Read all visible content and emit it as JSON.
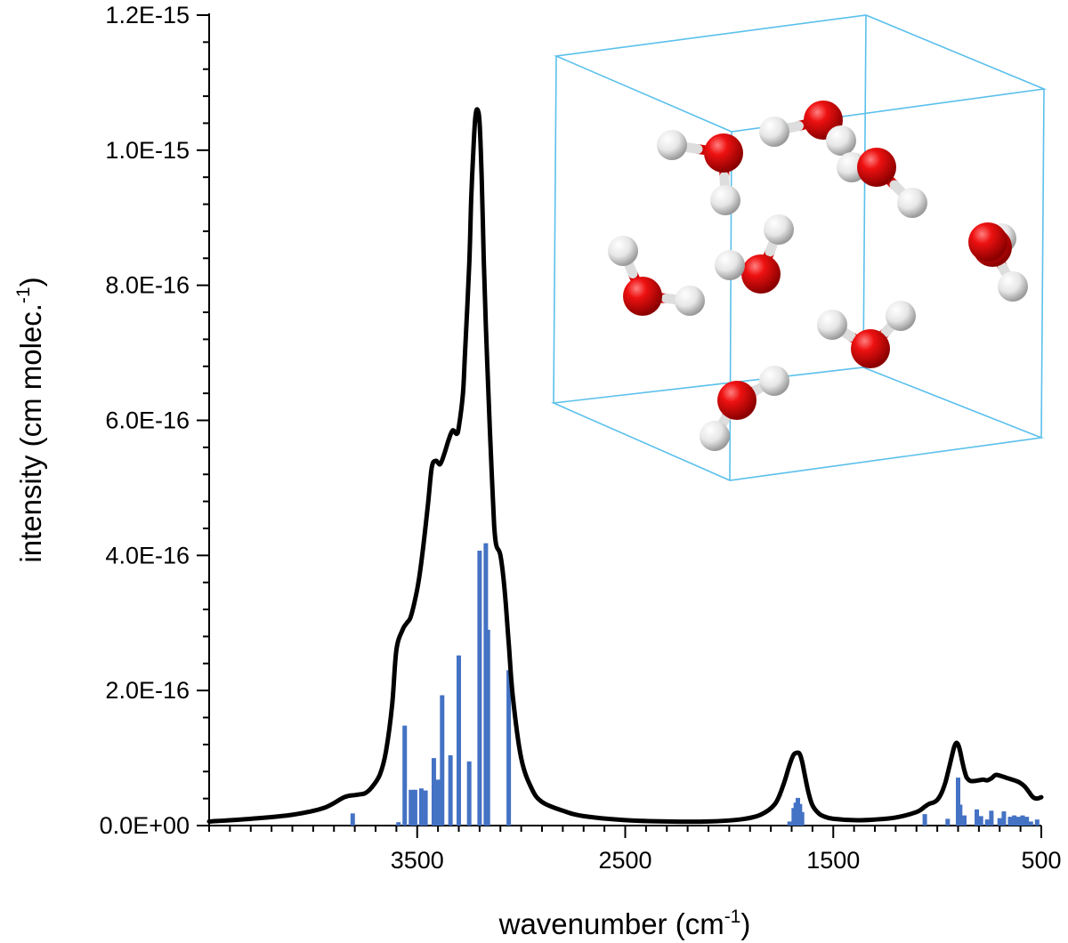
{
  "chart_data": {
    "type": "line",
    "title": "",
    "xlabel": "wavenumber (cm",
    "xlabel_sup": "-1",
    "xlabel_end": ")",
    "ylabel": "intensity (cm molec.",
    "ylabel_sup": "-1",
    "ylabel_end": ")",
    "x_reversed": true,
    "xlim": [
      4500,
      500
    ],
    "ylim": [
      0,
      1.2e-15
    ],
    "x_ticks": [
      3500,
      2500,
      1500,
      500
    ],
    "x_tick_labels": [
      "3500",
      "2500",
      "1500",
      "500"
    ],
    "y_ticks": [
      0,
      2e-16,
      4e-16,
      6e-16,
      8e-16,
      1e-15,
      1.2e-15
    ],
    "y_tick_labels": [
      "0.0E+00",
      "2.0E-16",
      "4.0E-16",
      "6.0E-16",
      "8.0E-16",
      "1.0E-15",
      "1.2E-15"
    ],
    "grid": false,
    "legend": "none",
    "colors": {
      "spectrum": "#000000",
      "sticks": "#4472C4",
      "cell": "#5BC0EB",
      "oxygen": "#E00000",
      "hydrogen": "#EEEEEE"
    },
    "series": [
      {
        "kind": "line",
        "x": [
          4500,
          4300,
          4100,
          3950,
          3850,
          3800,
          3780,
          3750,
          3720,
          3680,
          3650,
          3620,
          3600,
          3570,
          3550,
          3530,
          3500,
          3480,
          3450,
          3430,
          3410,
          3390,
          3370,
          3350,
          3330,
          3310,
          3300,
          3280,
          3270,
          3250,
          3240,
          3230,
          3220,
          3210,
          3200,
          3190,
          3180,
          3170,
          3160,
          3150,
          3140,
          3130,
          3120,
          3100,
          3080,
          3060,
          3040,
          3000,
          2950,
          2900,
          2800,
          2700,
          2500,
          2300,
          2100,
          1950,
          1850,
          1780,
          1740,
          1710,
          1690,
          1670,
          1660,
          1650,
          1640,
          1620,
          1600,
          1570,
          1540,
          1500,
          1400,
          1300,
          1200,
          1100,
          1060,
          1040,
          1020,
          1000,
          980,
          960,
          940,
          920,
          910,
          900,
          890,
          880,
          870,
          860,
          850,
          840,
          820,
          800,
          780,
          760,
          740,
          720,
          700,
          680,
          660,
          640,
          620,
          600,
          580,
          560,
          540,
          520,
          500
        ],
        "y": [
          6e-18,
          1e-17,
          1.6e-17,
          2.6e-17,
          4.2e-17,
          4.5e-17,
          4.6e-17,
          4.8e-17,
          5.6e-17,
          7.5e-17,
          1.1e-16,
          1.8e-16,
          2.6e-16,
          2.9e-16,
          3e-16,
          3.1e-16,
          3.5e-16,
          3.9e-16,
          4.7e-16,
          5.3e-16,
          5.4e-16,
          5.35e-16,
          5.5e-16,
          5.7e-16,
          5.85e-16,
          5.8e-16,
          5.9e-16,
          6.4e-16,
          7e-16,
          8.3e-16,
          9.3e-16,
          1e-15,
          1.05e-15,
          1.06e-15,
          1.04e-15,
          9.6e-16,
          8.4e-16,
          7.4e-16,
          6.6e-16,
          5.8e-16,
          5.1e-16,
          4.45e-16,
          4.15e-16,
          4e-16,
          3.5e-16,
          2.7e-16,
          1.9e-16,
          1e-16,
          5.5e-17,
          3.5e-17,
          2.2e-17,
          1.4e-17,
          8e-18,
          6e-18,
          6e-18,
          9e-18,
          1.6e-17,
          3.2e-17,
          6e-17,
          9e-17,
          1.05e-16,
          1.08e-16,
          1.05e-16,
          9.5e-17,
          8e-17,
          5e-17,
          3e-17,
          1.8e-17,
          1.3e-17,
          1e-17,
          8e-18,
          9e-18,
          1.2e-17,
          2e-17,
          2.8e-17,
          3.2e-17,
          3.4e-17,
          3.8e-17,
          4.8e-17,
          6.5e-17,
          9e-17,
          1.15e-16,
          1.22e-16,
          1.2e-16,
          1.1e-16,
          9.5e-17,
          8.2e-17,
          7.2e-17,
          6.8e-17,
          6.6e-17,
          6.6e-17,
          6.7e-17,
          6.8e-17,
          6.7e-17,
          7e-17,
          7.5e-17,
          7.4e-17,
          7.2e-17,
          7e-17,
          6.8e-17,
          6.6e-17,
          6.3e-17,
          5.8e-17,
          5e-17,
          4.2e-17,
          4e-17,
          4.2e-17
        ]
      },
      {
        "kind": "sticks",
        "x": [
          3810,
          3590,
          3560,
          3530,
          3510,
          3480,
          3460,
          3420,
          3400,
          3380,
          3340,
          3300,
          3250,
          3200,
          3170,
          3160,
          3060,
          1710,
          1690,
          1680,
          1670,
          1660,
          1650,
          1060,
          950,
          900,
          890,
          870,
          810,
          790,
          760,
          740,
          700,
          680,
          650,
          630,
          610,
          590,
          570,
          550,
          520
        ],
        "y": [
          1.8e-17,
          5e-18,
          1.48e-16,
          5.3e-17,
          5.3e-17,
          5.5e-17,
          5.2e-17,
          1e-16,
          6.8e-17,
          1.93e-16,
          1.04e-16,
          2.52e-16,
          9.5e-17,
          4.07e-16,
          4.18e-16,
          2.9e-16,
          2.3e-16,
          6e-18,
          2.6e-17,
          3.4e-17,
          4.1e-17,
          3.2e-17,
          2e-17,
          1.7e-17,
          1e-17,
          7.1e-17,
          3.1e-17,
          1.5e-17,
          2.4e-17,
          1.4e-17,
          9e-18,
          2.2e-17,
          1.1e-17,
          2.1e-17,
          1.3e-17,
          1.5e-17,
          1.3e-17,
          1.5e-17,
          1.3e-17,
          6e-18,
          9e-18
        ]
      }
    ]
  }
}
